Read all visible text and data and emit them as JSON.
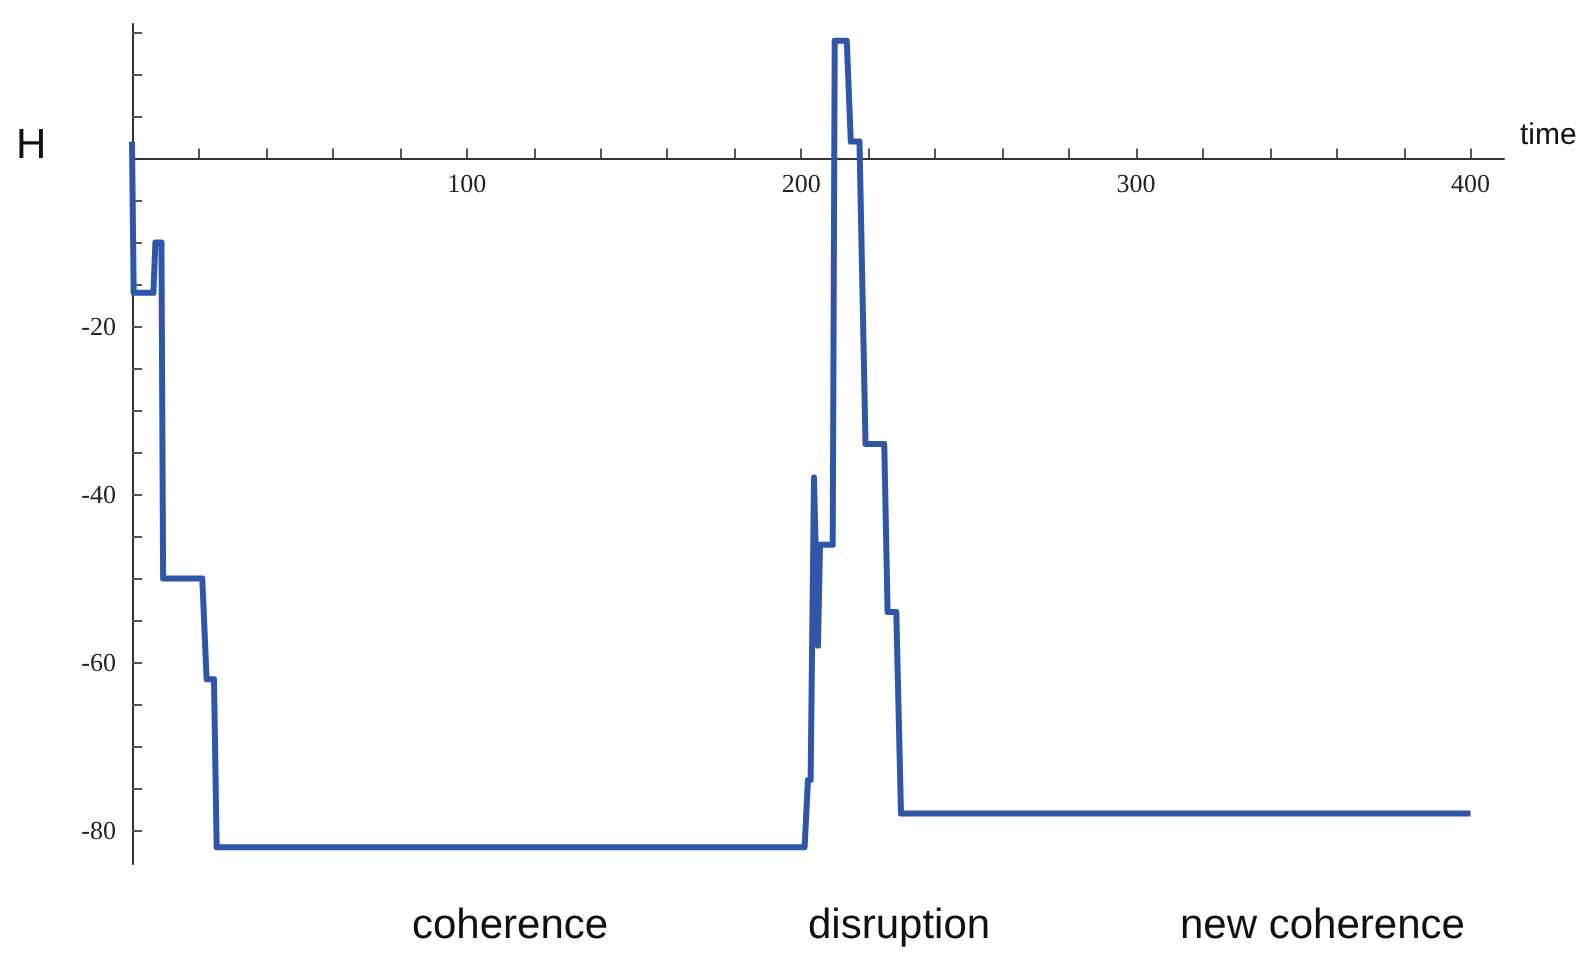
{
  "chart_data": {
    "type": "line",
    "xlabel": "time",
    "ylabel": "H",
    "annotations": [
      "coherence",
      "disruption",
      "new coherence"
    ],
    "series": [
      {
        "color": "#2f56a8",
        "x": [
          0,
          0.5,
          1,
          6.4,
          7,
          8.8,
          9.3,
          21,
          22.3,
          24.5,
          25.3,
          201,
          202,
          202.8,
          203.8,
          205,
          205.6,
          206.6,
          209.4,
          210,
          213.6,
          214.8,
          217.4,
          219.2,
          224.8,
          225.8,
          228.4,
          229.8,
          400
        ],
        "values": [
          2,
          -16,
          -16,
          -16,
          -10,
          -10,
          -50,
          -50,
          -62,
          -62,
          -82,
          -82,
          -74,
          -74,
          -38,
          -58,
          -46,
          -46,
          -46,
          14,
          14,
          2,
          2,
          -34,
          -34,
          -54,
          -54,
          -78,
          -78
        ]
      }
    ],
    "xlim": [
      0,
      410
    ],
    "xticks": [
      {
        "value": 20,
        "label": null
      },
      {
        "value": 40,
        "label": null
      },
      {
        "value": 60,
        "label": null
      },
      {
        "value": 80,
        "label": null
      },
      100,
      {
        "value": 120,
        "label": null
      },
      {
        "value": 140,
        "label": null
      },
      {
        "value": 160,
        "label": null
      },
      {
        "value": 180,
        "label": null
      },
      200,
      {
        "value": 220,
        "label": null
      },
      {
        "value": 240,
        "label": null
      },
      {
        "value": 260,
        "label": null
      },
      {
        "value": 280,
        "label": null
      },
      300,
      {
        "value": 320,
        "label": null
      },
      {
        "value": 340,
        "label": null
      },
      {
        "value": 360,
        "label": null
      },
      {
        "value": 380,
        "label": null
      },
      400
    ],
    "ylim": [
      -84,
      16
    ],
    "yticks": [
      {
        "value": 15,
        "label": null
      },
      {
        "value": 10,
        "label": null
      },
      {
        "value": 5,
        "label": null
      },
      {
        "value": -5,
        "label": null
      },
      {
        "value": -10,
        "label": null
      },
      {
        "value": -15,
        "label": null
      },
      -20,
      {
        "value": -25,
        "label": null
      },
      {
        "value": -30,
        "label": null
      },
      {
        "value": -35,
        "label": null
      },
      -40,
      {
        "value": -45,
        "label": null
      },
      {
        "value": -50,
        "label": null
      },
      {
        "value": -55,
        "label": null
      },
      -60,
      {
        "value": -65,
        "label": null
      },
      {
        "value": -70,
        "label": null
      },
      {
        "value": -75,
        "label": null
      },
      -80
    ],
    "grid": false,
    "marker": "none",
    "line_style": "solid"
  }
}
